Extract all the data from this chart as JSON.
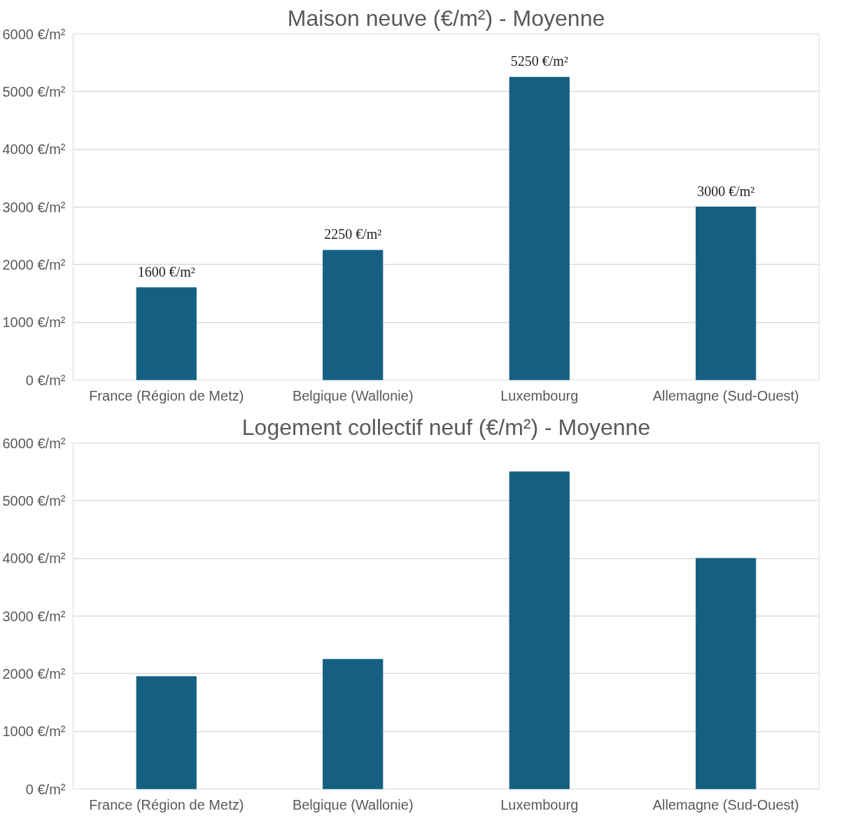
{
  "chart_data": [
    {
      "type": "bar",
      "title": "Maison neuve (€/m²) - Moyenne",
      "categories": [
        "France (Région de Metz)",
        "Belgique (Wallonie)",
        "Luxembourg",
        "Allemagne (Sud-Ouest)"
      ],
      "values": [
        1600,
        2250,
        5250,
        3000
      ],
      "value_labels": [
        "1600 €/m²",
        "2250 €/m²",
        "5250 €/m²",
        "3000 €/m²"
      ],
      "color": "#156082",
      "ylim": [
        0,
        6000
      ],
      "yticks": [
        {
          "value": 0,
          "label": "0 €/m²"
        },
        {
          "value": 1000,
          "label": "1000 €/m²"
        },
        {
          "value": 2000,
          "label": "2000 €/m²"
        },
        {
          "value": 3000,
          "label": "3000 €/m²"
        },
        {
          "value": 4000,
          "label": "4000 €/m²"
        },
        {
          "value": 5000,
          "label": "5000 €/m²"
        },
        {
          "value": 6000,
          "label": "6000 €/m²"
        }
      ],
      "grid": "y"
    },
    {
      "type": "bar",
      "title": "Logement collectif neuf (€/m²) - Moyenne",
      "categories": [
        "France (Région de Metz)",
        "Belgique (Wallonie)",
        "Luxembourg",
        "Allemagne (Sud-Ouest)"
      ],
      "values": [
        1950,
        2250,
        5500,
        4000
      ],
      "color": "#156082",
      "ylim": [
        0,
        6000
      ],
      "yticks": [
        {
          "value": 0,
          "label": "0 €/m²"
        },
        {
          "value": 1000,
          "label": "1000 €/m²"
        },
        {
          "value": 2000,
          "label": "2000 €/m²"
        },
        {
          "value": 3000,
          "label": "3000 €/m²"
        },
        {
          "value": 4000,
          "label": "4000 €/m²"
        },
        {
          "value": 5000,
          "label": "5000 €/m²"
        },
        {
          "value": 6000,
          "label": "6000 €/m²"
        }
      ],
      "grid": "y"
    }
  ]
}
